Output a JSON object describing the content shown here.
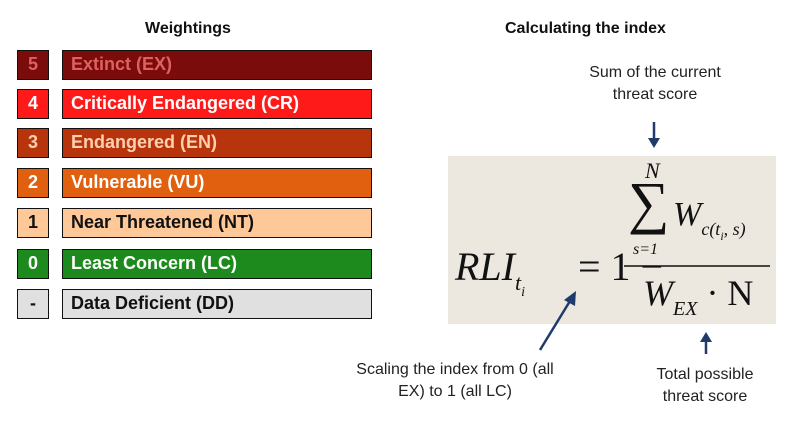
{
  "headings": {
    "weightings": "Weightings",
    "calculating": "Calculating the index"
  },
  "categories": [
    {
      "score": "5",
      "label": "Extinct (EX)",
      "score_bg": "#7a0c0c",
      "score_fg": "#e06060",
      "label_bg": "#7a0c0c",
      "label_fg": "#e06060"
    },
    {
      "score": "4",
      "label": "Critically Endangered (CR)",
      "score_bg": "#ff1a1a",
      "score_fg": "#ffffff",
      "label_bg": "#ff1a1a",
      "label_fg": "#ffffff"
    },
    {
      "score": "3",
      "label": "Endangered (EN)",
      "score_bg": "#b8340c",
      "score_fg": "#ffd0b0",
      "label_bg": "#b8340c",
      "label_fg": "#ffd0b0"
    },
    {
      "score": "2",
      "label": "Vulnerable (VU)",
      "score_bg": "#e06010",
      "score_fg": "#ffffff",
      "label_bg": "#e06010",
      "label_fg": "#ffffff"
    },
    {
      "score": "1",
      "label": "Near Threatened (NT)",
      "score_bg": "#ffc898",
      "score_fg": "#111111",
      "label_bg": "#ffc898",
      "label_fg": "#111111"
    },
    {
      "score": "0",
      "label": "Least Concern (LC)",
      "score_bg": "#1c8a1c",
      "score_fg": "#ffffff",
      "label_bg": "#1c8a1c",
      "label_fg": "#ffffff"
    },
    {
      "score": "-",
      "label": "Data Deficient (DD)",
      "score_bg": "#e0e0e0",
      "score_fg": "#111111",
      "label_bg": "#e0e0e0",
      "label_fg": "#111111"
    }
  ],
  "formula": {
    "lhs": "RLI",
    "lhs_sub": "t",
    "lhs_subsub": "i",
    "equals": "= 1 −",
    "sum_symbol": "∑",
    "sum_upper": "N",
    "sum_lower": "s=1",
    "weight": "W",
    "weight_sub": "c(t",
    "weight_subsub": "i",
    "weight_sub_end": ", s)",
    "den_weight": "W",
    "den_sub": "EX",
    "den_rest": "· N"
  },
  "annotations": {
    "sum_current_line1": "Sum of the current",
    "sum_current_line2": "threat score",
    "scaling_line1": "Scaling the index from 0 (all",
    "scaling_line2": "EX) to 1 (all LC)",
    "total_line1": "Total possible",
    "total_line2": "threat score"
  },
  "colors": {
    "arrow": "#1f3b6b",
    "formula_bg": "#ede8df"
  }
}
